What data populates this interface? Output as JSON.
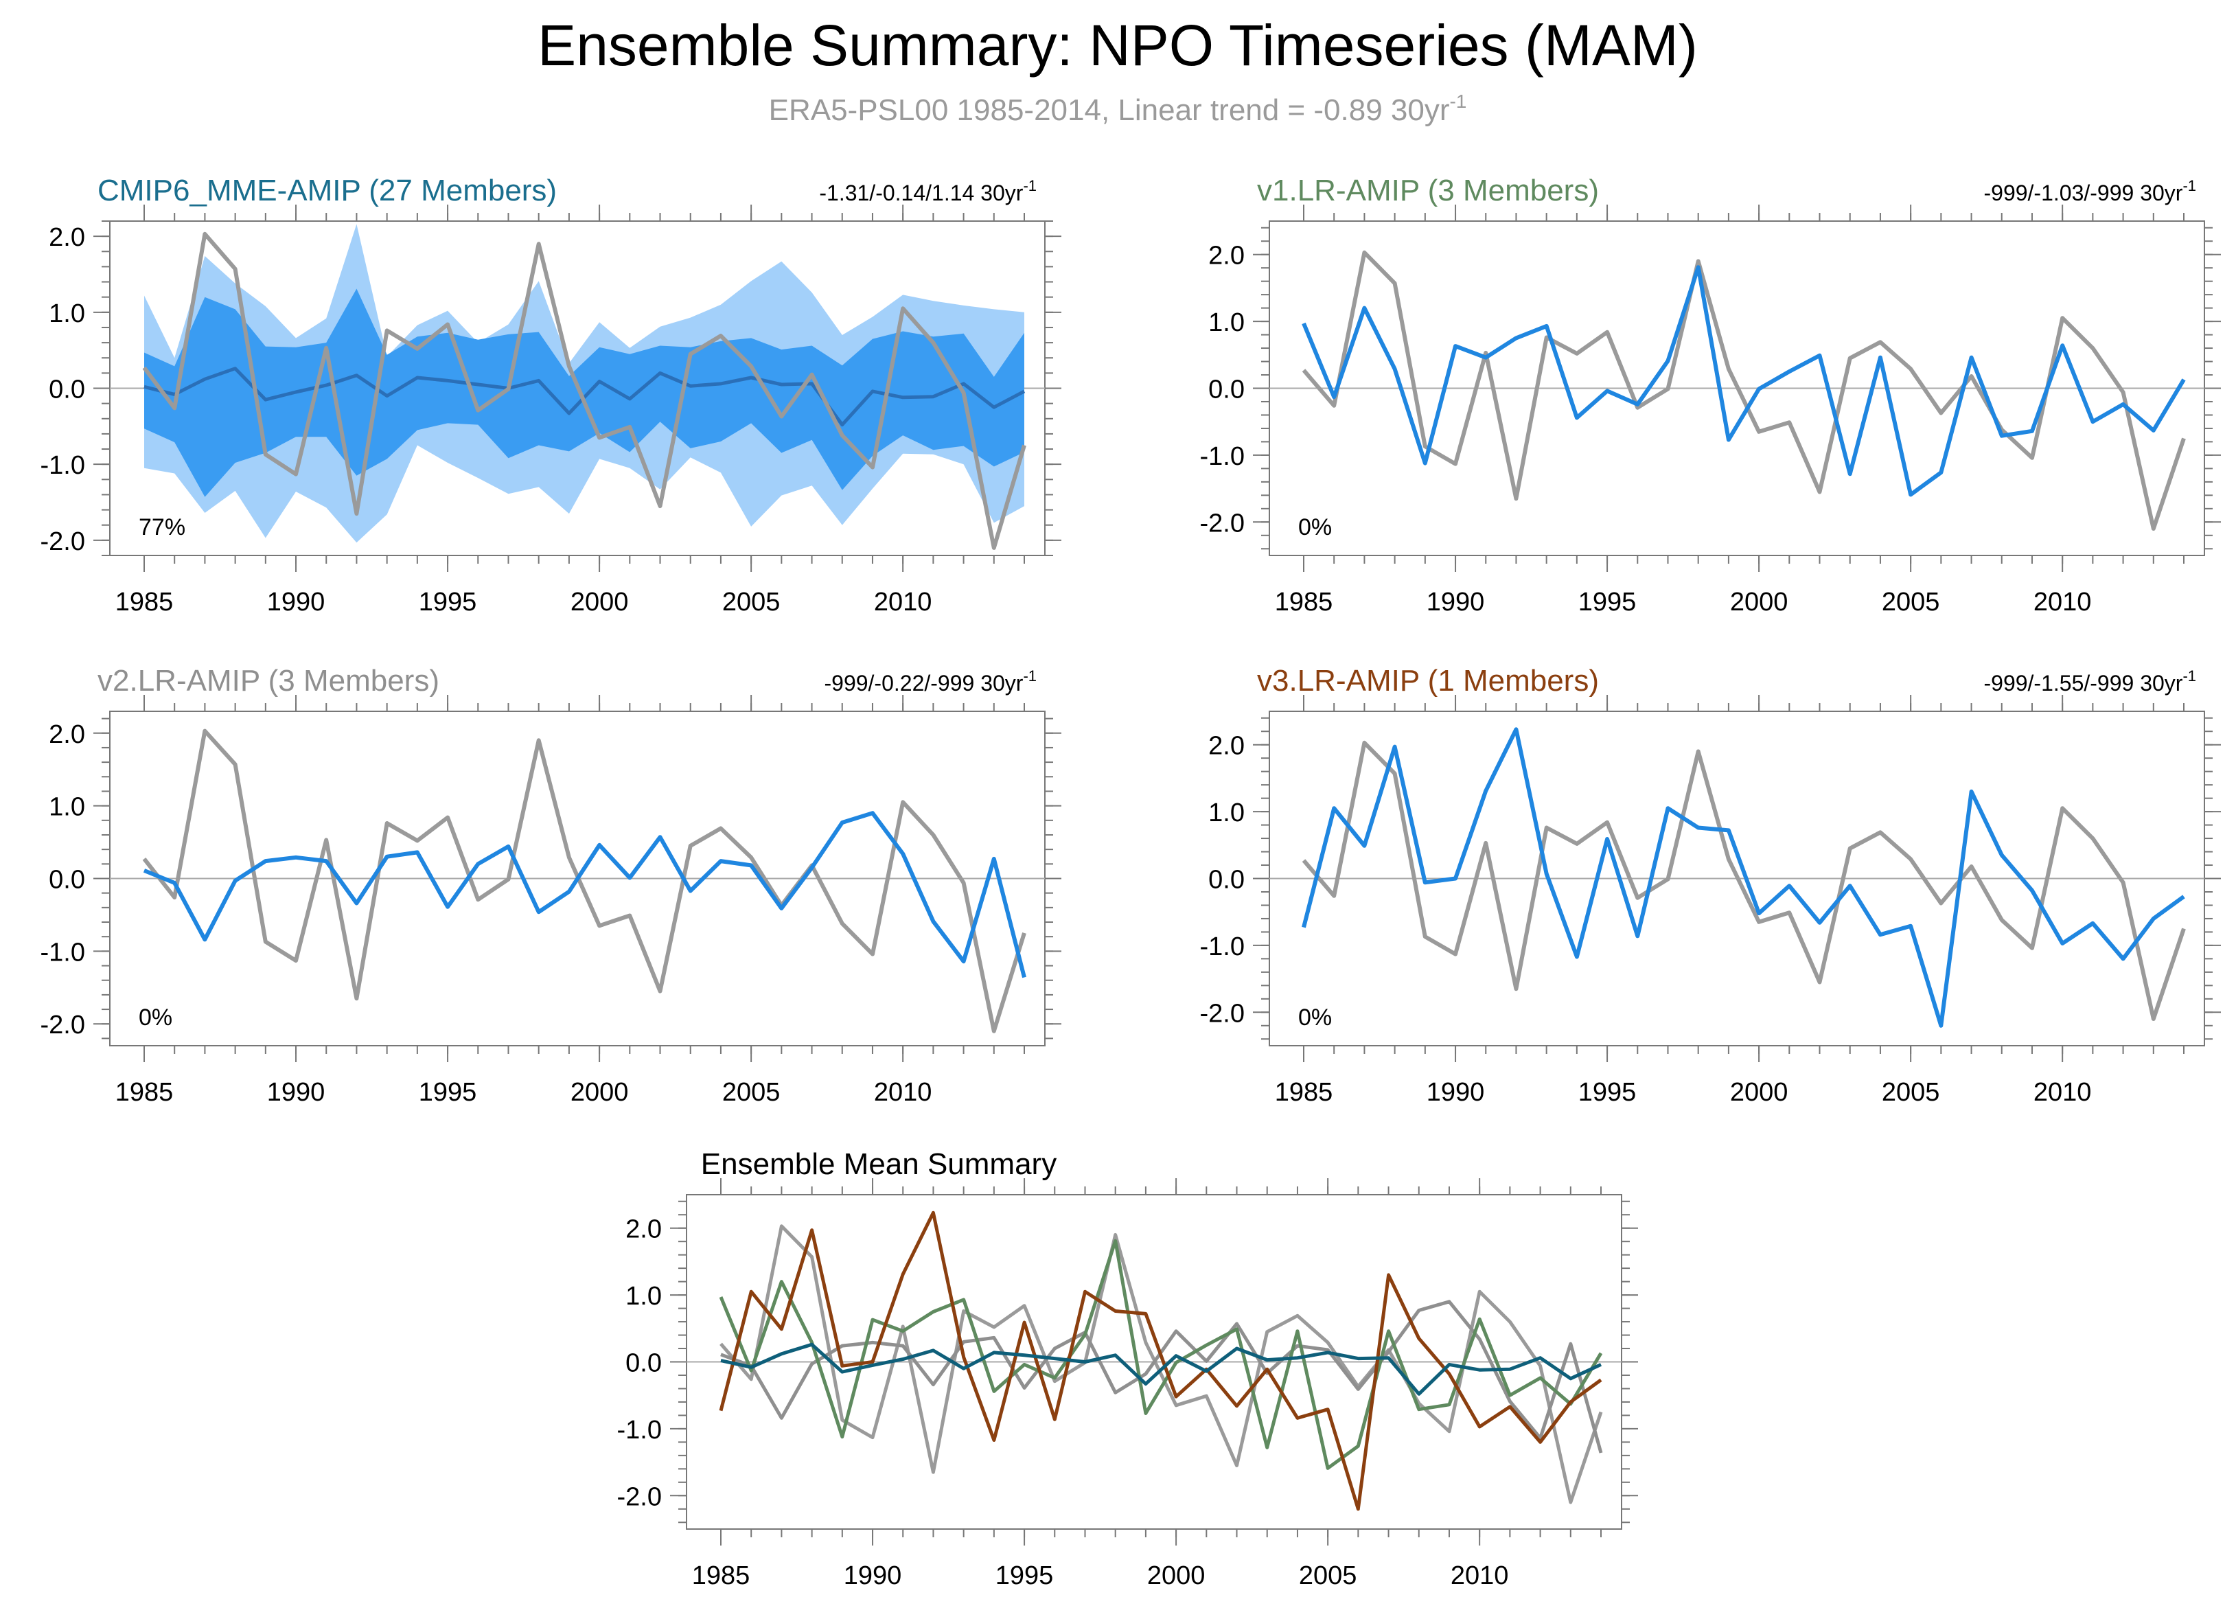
{
  "title": "Ensemble Summary: NPO Timeseries (MAM)",
  "subtitle": "ERA5-PSL00 1985-2014, Linear trend = -0.89 30yr",
  "subtitle_sup": "-1",
  "unit_sup": "-1",
  "colors": {
    "obs": "#9a9a9a",
    "model": "#1f86e0",
    "mme_mean": "#2a6fb8",
    "band_outer": "#a3d0fa",
    "band_inner": "#3a9cf2",
    "mme_title": "#1a6e8e",
    "v1": "#5f8a5f",
    "v2": "#8f8f8f",
    "v3": "#8b3f0f",
    "mean_mme": "#0e5f7a"
  },
  "chart_data": [
    {
      "id": "mme",
      "type": "line",
      "title": "CMIP6_MME-AMIP (27 Members)",
      "trend_text": "-1.31/-0.14/1.14 30yr",
      "pct": "77%",
      "xlabel": "",
      "ylabel": "",
      "xlim": [
        1985,
        2014
      ],
      "ylim": [
        -2.2,
        2.2
      ],
      "x_ticks": [
        "1985",
        "1990",
        "1995",
        "2000",
        "2005",
        "2010"
      ],
      "y_ticks": [
        "2.0",
        "1.0",
        "0.0",
        "-1.0",
        "-2.0"
      ],
      "x": [
        1985,
        1986,
        1987,
        1988,
        1989,
        1990,
        1991,
        1992,
        1993,
        1994,
        1995,
        1996,
        1997,
        1998,
        1999,
        2000,
        2001,
        2002,
        2003,
        2004,
        2005,
        2006,
        2007,
        2008,
        2009,
        2010,
        2011,
        2012,
        2013,
        2014
      ],
      "obs": [
        0.27,
        -0.26,
        2.03,
        1.57,
        -0.87,
        -1.13,
        0.53,
        -1.65,
        0.76,
        0.52,
        0.84,
        -0.29,
        -0.01,
        1.9,
        0.29,
        -0.65,
        -0.51,
        -1.55,
        0.45,
        0.69,
        0.29,
        -0.37,
        0.18,
        -0.62,
        -1.04,
        1.05,
        0.6,
        -0.06,
        -2.1,
        -0.75
      ],
      "mean": [
        0.02,
        -0.08,
        0.12,
        0.26,
        -0.15,
        -0.05,
        0.04,
        0.17,
        -0.1,
        0.14,
        0.1,
        0.05,
        0.0,
        0.1,
        -0.33,
        0.09,
        -0.14,
        0.2,
        0.03,
        0.06,
        0.14,
        0.05,
        0.06,
        -0.48,
        -0.04,
        -0.12,
        -0.11,
        0.06,
        -0.25,
        -0.04
      ],
      "band_outer_upper": [
        1.22,
        0.4,
        1.74,
        1.38,
        1.08,
        0.66,
        0.92,
        2.16,
        0.42,
        0.83,
        1.02,
        0.6,
        0.84,
        1.41,
        0.33,
        0.87,
        0.53,
        0.81,
        0.93,
        1.1,
        1.41,
        1.67,
        1.26,
        0.7,
        0.94,
        1.23,
        1.15,
        1.09,
        1.04,
        1.0
      ],
      "band_outer_lower": [
        -1.05,
        -1.12,
        -1.64,
        -1.35,
        -1.97,
        -1.36,
        -1.57,
        -2.03,
        -1.66,
        -0.75,
        -0.98,
        -1.18,
        -1.39,
        -1.3,
        -1.65,
        -0.93,
        -1.05,
        -1.33,
        -0.91,
        -1.11,
        -1.82,
        -1.41,
        -1.28,
        -1.8,
        -1.32,
        -0.86,
        -0.87,
        -1.0,
        -1.77,
        -1.55
      ],
      "band_inner_upper": [
        0.47,
        0.29,
        1.2,
        1.04,
        0.55,
        0.54,
        0.6,
        1.31,
        0.44,
        0.68,
        0.73,
        0.64,
        0.71,
        0.74,
        0.16,
        0.54,
        0.45,
        0.56,
        0.54,
        0.62,
        0.66,
        0.51,
        0.56,
        0.3,
        0.65,
        0.75,
        0.68,
        0.72,
        0.15,
        0.73
      ],
      "band_inner_lower": [
        -0.53,
        -0.71,
        -1.43,
        -0.98,
        -0.85,
        -0.64,
        -0.64,
        -1.15,
        -0.93,
        -0.55,
        -0.46,
        -0.48,
        -0.92,
        -0.75,
        -0.83,
        -0.59,
        -0.84,
        -0.44,
        -0.79,
        -0.7,
        -0.46,
        -0.85,
        -0.68,
        -1.34,
        -0.89,
        -0.62,
        -0.81,
        -0.76,
        -1.03,
        -0.84
      ]
    },
    {
      "id": "v1",
      "type": "line",
      "title": "v1.LR-AMIP (3 Members)",
      "trend_text": "-999/-1.03/-999 30yr",
      "pct": "0%",
      "xlabel": "",
      "ylabel": "",
      "xlim": [
        1985,
        2014
      ],
      "ylim": [
        -2.5,
        2.5
      ],
      "x_ticks": [
        "1985",
        "1990",
        "1995",
        "2000",
        "2005",
        "2010"
      ],
      "y_ticks": [
        "2.0",
        "1.0",
        "0.0",
        "-1.0",
        "-2.0"
      ],
      "x": [
        1985,
        1986,
        1987,
        1988,
        1989,
        1990,
        1991,
        1992,
        1993,
        1994,
        1995,
        1996,
        1997,
        1998,
        1999,
        2000,
        2001,
        2002,
        2003,
        2004,
        2005,
        2006,
        2007,
        2008,
        2009,
        2010,
        2011,
        2012,
        2013,
        2014
      ],
      "obs": [
        0.27,
        -0.26,
        2.03,
        1.57,
        -0.87,
        -1.13,
        0.53,
        -1.65,
        0.76,
        0.52,
        0.84,
        -0.29,
        -0.01,
        1.9,
        0.29,
        -0.65,
        -0.51,
        -1.55,
        0.45,
        0.69,
        0.29,
        -0.37,
        0.18,
        -0.62,
        -1.04,
        1.05,
        0.6,
        -0.06,
        -2.1,
        -0.75
      ],
      "model": [
        0.97,
        -0.13,
        1.2,
        0.29,
        -1.12,
        0.63,
        0.46,
        0.75,
        0.93,
        -0.44,
        -0.04,
        -0.24,
        0.41,
        1.81,
        -0.77,
        -0.01,
        0.25,
        0.49,
        -1.28,
        0.46,
        -1.59,
        -1.26,
        0.46,
        -0.71,
        -0.64,
        0.64,
        -0.5,
        -0.24,
        -0.63,
        0.13
      ]
    },
    {
      "id": "v2",
      "type": "line",
      "title": "v2.LR-AMIP (3 Members)",
      "trend_text": "-999/-0.22/-999 30yr",
      "pct": "0%",
      "xlabel": "",
      "ylabel": "",
      "xlim": [
        1985,
        2014
      ],
      "ylim": [
        -2.3,
        2.3
      ],
      "x_ticks": [
        "1985",
        "1990",
        "1995",
        "2000",
        "2005",
        "2010"
      ],
      "y_ticks": [
        "2.0",
        "1.0",
        "0.0",
        "-1.0",
        "-2.0"
      ],
      "x": [
        1985,
        1986,
        1987,
        1988,
        1989,
        1990,
        1991,
        1992,
        1993,
        1994,
        1995,
        1996,
        1997,
        1998,
        1999,
        2000,
        2001,
        2002,
        2003,
        2004,
        2005,
        2006,
        2007,
        2008,
        2009,
        2010,
        2011,
        2012,
        2013,
        2014
      ],
      "obs": [
        0.27,
        -0.26,
        2.03,
        1.57,
        -0.87,
        -1.13,
        0.53,
        -1.65,
        0.76,
        0.52,
        0.84,
        -0.29,
        -0.01,
        1.9,
        0.29,
        -0.65,
        -0.51,
        -1.55,
        0.45,
        0.69,
        0.29,
        -0.37,
        0.18,
        -0.62,
        -1.04,
        1.05,
        0.6,
        -0.06,
        -2.1,
        -0.75
      ],
      "model": [
        0.11,
        -0.06,
        -0.84,
        -0.03,
        0.24,
        0.29,
        0.24,
        -0.34,
        0.3,
        0.36,
        -0.39,
        0.2,
        0.44,
        -0.46,
        -0.18,
        0.46,
        0.01,
        0.57,
        -0.17,
        0.24,
        0.18,
        -0.41,
        0.15,
        0.77,
        0.9,
        0.34,
        -0.59,
        -1.14,
        0.27,
        -1.36
      ]
    },
    {
      "id": "v3",
      "type": "line",
      "title": "v3.LR-AMIP (1 Members)",
      "trend_text": "-999/-1.55/-999 30yr",
      "pct": "0%",
      "xlabel": "",
      "ylabel": "",
      "xlim": [
        1985,
        2014
      ],
      "ylim": [
        -2.5,
        2.5
      ],
      "x_ticks": [
        "1985",
        "1990",
        "1995",
        "2000",
        "2005",
        "2010"
      ],
      "y_ticks": [
        "2.0",
        "1.0",
        "0.0",
        "-1.0",
        "-2.0"
      ],
      "x": [
        1985,
        1986,
        1987,
        1988,
        1989,
        1990,
        1991,
        1992,
        1993,
        1994,
        1995,
        1996,
        1997,
        1998,
        1999,
        2000,
        2001,
        2002,
        2003,
        2004,
        2005,
        2006,
        2007,
        2008,
        2009,
        2010,
        2011,
        2012,
        2013,
        2014
      ],
      "obs": [
        0.27,
        -0.26,
        2.03,
        1.57,
        -0.87,
        -1.13,
        0.53,
        -1.65,
        0.76,
        0.52,
        0.84,
        -0.29,
        -0.01,
        1.9,
        0.29,
        -0.65,
        -0.51,
        -1.55,
        0.45,
        0.69,
        0.29,
        -0.37,
        0.18,
        -0.62,
        -1.04,
        1.05,
        0.6,
        -0.06,
        -2.1,
        -0.75
      ],
      "model": [
        -0.73,
        1.05,
        0.49,
        1.97,
        -0.06,
        0.0,
        1.31,
        2.23,
        0.07,
        -1.17,
        0.59,
        -0.86,
        1.05,
        0.76,
        0.72,
        -0.52,
        -0.11,
        -0.66,
        -0.11,
        -0.84,
        -0.71,
        -2.2,
        1.3,
        0.35,
        -0.18,
        -0.97,
        -0.67,
        -1.2,
        -0.6,
        -0.27
      ]
    },
    {
      "id": "summary",
      "type": "line",
      "title": "Ensemble Mean Summary",
      "xlabel": "",
      "ylabel": "",
      "xlim": [
        1985,
        2014
      ],
      "ylim": [
        -2.5,
        2.5
      ],
      "x_ticks": [
        "1985",
        "1990",
        "1995",
        "2000",
        "2005",
        "2010"
      ],
      "y_ticks": [
        "2.0",
        "1.0",
        "0.0",
        "-1.0",
        "-2.0"
      ],
      "x": [
        1985,
        1986,
        1987,
        1988,
        1989,
        1990,
        1991,
        1992,
        1993,
        1994,
        1995,
        1996,
        1997,
        1998,
        1999,
        2000,
        2001,
        2002,
        2003,
        2004,
        2005,
        2006,
        2007,
        2008,
        2009,
        2010,
        2011,
        2012,
        2013,
        2014
      ],
      "series": [
        {
          "name": "ERA5-PSL00",
          "color_key": "obs",
          "values": [
            0.27,
            -0.26,
            2.03,
            1.57,
            -0.87,
            -1.13,
            0.53,
            -1.65,
            0.76,
            0.52,
            0.84,
            -0.29,
            -0.01,
            1.9,
            0.29,
            -0.65,
            -0.51,
            -1.55,
            0.45,
            0.69,
            0.29,
            -0.37,
            0.18,
            -0.62,
            -1.04,
            1.05,
            0.6,
            -0.06,
            -2.1,
            -0.75
          ]
        },
        {
          "name": "v2.LR-AMIP",
          "color_key": "v2",
          "values": [
            0.11,
            -0.06,
            -0.84,
            -0.03,
            0.24,
            0.29,
            0.24,
            -0.34,
            0.3,
            0.36,
            -0.39,
            0.2,
            0.44,
            -0.46,
            -0.18,
            0.46,
            0.01,
            0.57,
            -0.17,
            0.24,
            0.18,
            -0.41,
            0.15,
            0.77,
            0.9,
            0.34,
            -0.59,
            -1.14,
            0.27,
            -1.36
          ]
        },
        {
          "name": "v1.LR-AMIP",
          "color_key": "v1",
          "values": [
            0.97,
            -0.13,
            1.2,
            0.29,
            -1.12,
            0.63,
            0.46,
            0.75,
            0.93,
            -0.44,
            -0.04,
            -0.24,
            0.41,
            1.81,
            -0.77,
            -0.01,
            0.25,
            0.49,
            -1.28,
            0.46,
            -1.59,
            -1.26,
            0.46,
            -0.71,
            -0.64,
            0.64,
            -0.5,
            -0.24,
            -0.63,
            0.13
          ]
        },
        {
          "name": "v3.LR-AMIP",
          "color_key": "v3",
          "values": [
            -0.73,
            1.05,
            0.49,
            1.97,
            -0.06,
            0.0,
            1.31,
            2.23,
            0.07,
            -1.17,
            0.59,
            -0.86,
            1.05,
            0.76,
            0.72,
            -0.52,
            -0.11,
            -0.66,
            -0.11,
            -0.84,
            -0.71,
            -2.2,
            1.3,
            0.35,
            -0.18,
            -0.97,
            -0.67,
            -1.2,
            -0.6,
            -0.27
          ]
        },
        {
          "name": "CMIP6_MME-AMIP",
          "color_key": "mean_mme",
          "values": [
            0.02,
            -0.08,
            0.12,
            0.26,
            -0.15,
            -0.05,
            0.04,
            0.17,
            -0.1,
            0.14,
            0.1,
            0.05,
            0.0,
            0.1,
            -0.33,
            0.09,
            -0.14,
            0.2,
            0.03,
            0.06,
            0.14,
            0.05,
            0.06,
            -0.48,
            -0.04,
            -0.12,
            -0.11,
            0.06,
            -0.25,
            -0.04
          ]
        }
      ]
    }
  ]
}
